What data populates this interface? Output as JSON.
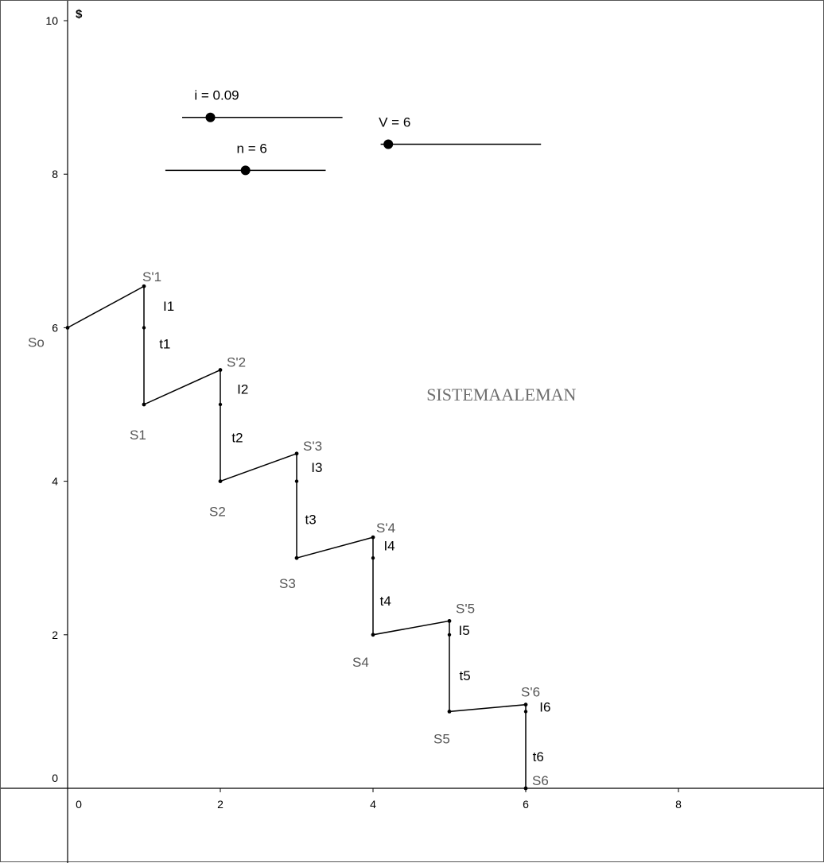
{
  "chart_data": {
    "type": "line",
    "xlim": [
      -0.3,
      10.4
    ],
    "ylim": [
      -1.3,
      10.2
    ],
    "x_ticks": [
      0,
      2,
      4,
      6,
      8
    ],
    "y_ticks": [
      0,
      2,
      4,
      6,
      8,
      10
    ],
    "y_unit_label": "$",
    "grid": false,
    "points": [
      {
        "name": "So",
        "x": 0,
        "y": 6.0,
        "label": "So"
      },
      {
        "name": "S'1",
        "x": 1,
        "y": 6.54,
        "label": "S'1"
      },
      {
        "name": "S1",
        "x": 1,
        "y": 5.0,
        "label": "S1"
      },
      {
        "name": "S'2",
        "x": 2,
        "y": 5.45,
        "label": "S'2"
      },
      {
        "name": "S2",
        "x": 2,
        "y": 4.0,
        "label": "S2"
      },
      {
        "name": "S'3",
        "x": 3,
        "y": 4.36,
        "label": "S'3"
      },
      {
        "name": "S3",
        "x": 3,
        "y": 3.0,
        "label": "S3"
      },
      {
        "name": "S'4",
        "x": 4,
        "y": 3.27,
        "label": "S'4"
      },
      {
        "name": "S4",
        "x": 4,
        "y": 2.0,
        "label": "S4"
      },
      {
        "name": "S'5",
        "x": 5,
        "y": 2.18,
        "label": "S'5"
      },
      {
        "name": "S5",
        "x": 5,
        "y": 1.0,
        "label": "S5"
      },
      {
        "name": "S'6",
        "x": 6,
        "y": 1.09,
        "label": "S'6"
      },
      {
        "name": "S6",
        "x": 6,
        "y": 0.0,
        "label": "S6"
      }
    ],
    "segment_labels": [
      {
        "name": "I1",
        "label": "I1",
        "x": 1.25,
        "y": 6.22
      },
      {
        "name": "t1",
        "label": "t1",
        "x": 1.2,
        "y": 5.73
      },
      {
        "name": "I2",
        "label": "I2",
        "x": 2.22,
        "y": 5.14
      },
      {
        "name": "t2",
        "label": "t2",
        "x": 2.15,
        "y": 4.51
      },
      {
        "name": "I3",
        "label": "I3",
        "x": 3.19,
        "y": 4.12
      },
      {
        "name": "t3",
        "label": "t3",
        "x": 3.11,
        "y": 3.44
      },
      {
        "name": "I4",
        "label": "I4",
        "x": 4.14,
        "y": 3.1
      },
      {
        "name": "t4",
        "label": "t4",
        "x": 4.09,
        "y": 2.38
      },
      {
        "name": "I5",
        "label": "I5",
        "x": 5.12,
        "y": 2.0
      },
      {
        "name": "t5",
        "label": "t5",
        "x": 5.13,
        "y": 1.41
      },
      {
        "name": "I6",
        "label": "I6",
        "x": 6.18,
        "y": 1.0
      },
      {
        "name": "t6",
        "label": "t6",
        "x": 6.09,
        "y": 0.35
      }
    ],
    "sliders": [
      {
        "name": "i",
        "label": "i = 0.09",
        "value": 0.09,
        "x_start": 1.5,
        "x_end": 3.6,
        "y": 8.74,
        "thumb_x": 1.87
      },
      {
        "name": "n",
        "label": "n = 6",
        "value": 6,
        "x_start": 1.28,
        "x_end": 3.38,
        "y": 8.05,
        "thumb_x": 2.33
      },
      {
        "name": "V",
        "label": "V = 6",
        "value": 6,
        "x_start": 4.1,
        "x_end": 6.2,
        "y": 8.39,
        "thumb_x": 4.2
      }
    ],
    "annotation": {
      "text": "SISTEMAALEMAN",
      "x": 4.7,
      "y": 5.05
    }
  },
  "colors": {
    "line": "#000000",
    "point_label": "#555555",
    "watermark": "#6e6e6e",
    "border": "#555555"
  }
}
